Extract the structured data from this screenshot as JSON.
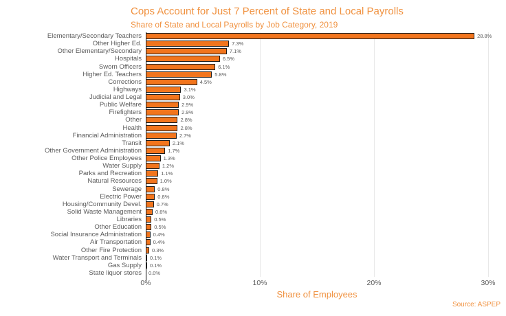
{
  "title": "Cops Account for Just 7 Percent of State and Local Payrolls",
  "subtitle": "Share of State and Local Payrolls by Job Category, 2019",
  "source": "Source: ASPEP",
  "colors": {
    "bar_fill": "#F2751D",
    "bar_border": "#1F1F1F",
    "heading_orange": "#F0913F",
    "text_gray": "#595959",
    "gridline": "#E8E8E8",
    "axis_line": "#000000"
  },
  "chart_data": {
    "type": "bar",
    "orientation": "horizontal",
    "title": "Cops Account for Just 7 Percent of State and Local Payrolls",
    "subtitle": "Share of State and Local Payrolls by Job Category, 2019",
    "xlabel": "Share of Employees",
    "ylabel": "",
    "xlim": [
      0,
      30
    ],
    "x_ticks": [
      "0%",
      "10%",
      "20%",
      "30%"
    ],
    "x_tick_values": [
      0,
      10,
      20,
      30
    ],
    "grid": "vertical gridlines at 10%, 20%, 30%",
    "legend": "none",
    "categories": [
      "Elementary/Secondary Teachers",
      "Other Higher Ed.",
      "Other Elementary/Secondary",
      "Hospitals",
      "Sworn Officers",
      "Higher Ed. Teachers",
      "Corrections",
      "Highways",
      "Judicial and Legal",
      "Public Welfare",
      "Firefighters",
      "Other",
      "Health",
      "Financial Administration",
      "Transit",
      "Other Government Administration",
      "Other Police Employees",
      "Water Supply",
      "Parks and Recreation",
      "Natural Resources",
      "Sewerage",
      "Electric Power",
      "Housing/Community Devel.",
      "Solid Waste Management",
      "Libraries",
      "Other Education",
      "Social Insurance Administration",
      "Air Transportation",
      "Other Fire Protection",
      "Water Transport and Terminals",
      "Gas Supply",
      "State liquor stores"
    ],
    "values": [
      28.8,
      7.3,
      7.1,
      6.5,
      6.1,
      5.8,
      4.5,
      3.1,
      3.0,
      2.9,
      2.9,
      2.8,
      2.8,
      2.7,
      2.1,
      1.7,
      1.3,
      1.2,
      1.1,
      1.0,
      0.8,
      0.8,
      0.7,
      0.6,
      0.5,
      0.5,
      0.4,
      0.4,
      0.3,
      0.1,
      0.1,
      0.0
    ],
    "value_labels": [
      "28.8%",
      "7.3%",
      "7.1%",
      "6.5%",
      "6.1%",
      "5.8%",
      "4.5%",
      "3.1%",
      "3.0%",
      "2.9%",
      "2.9%",
      "2.8%",
      "2.8%",
      "2.7%",
      "2.1%",
      "1.7%",
      "1.3%",
      "1.2%",
      "1.1%",
      "1.0%",
      "0.8%",
      "0.8%",
      "0.7%",
      "0.6%",
      "0.5%",
      "0.5%",
      "0.4%",
      "0.4%",
      "0.3%",
      "0.1%",
      "0.1%",
      "0.0%"
    ]
  }
}
